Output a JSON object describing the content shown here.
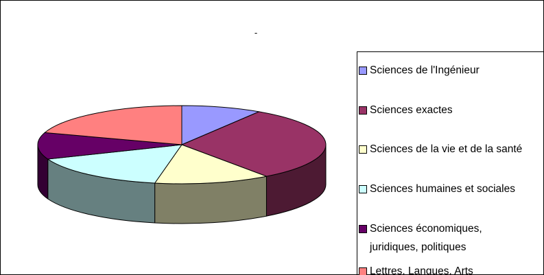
{
  "chart_data": {
    "type": "pie",
    "title": "-",
    "categories": [
      "Sciences de l'Ingénieur",
      "Sciences exactes",
      "Sciences de la vie et de la santé",
      "Sciences humaines et sociales",
      "Sciences économiques, juridiques, politiques",
      "Lettres, Langues, Arts"
    ],
    "values": [
      9,
      31,
      13,
      16,
      11,
      20
    ],
    "colors": [
      "#9999ff",
      "#993366",
      "#ffffcc",
      "#ccffff",
      "#660066",
      "#ff8080"
    ],
    "legend": "right"
  }
}
